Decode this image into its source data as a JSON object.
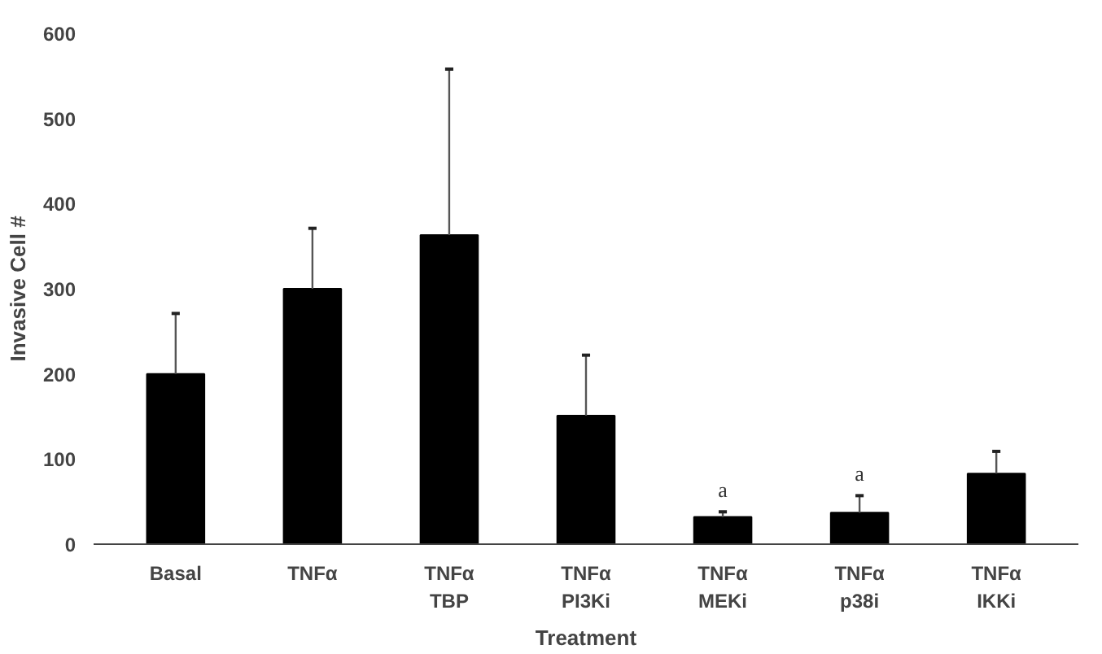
{
  "chart_data": {
    "type": "bar",
    "categories": [
      "Basal",
      "TNFα",
      "TNFα\nTBP",
      "TNFα\nPI3Ki",
      "TNFα\nMEKi",
      "TNFα\np38i",
      "TNFα\nIKKi"
    ],
    "values": [
      200,
      300,
      363,
      151,
      32,
      37,
      83
    ],
    "errors": [
      [
        200,
        271
      ],
      [
        300,
        371
      ],
      [
        363,
        558
      ],
      [
        151,
        222
      ],
      [
        32,
        38
      ],
      [
        37,
        57
      ],
      [
        83,
        109
      ]
    ],
    "color": "#000000",
    "xlabel": "Treatment",
    "ylabel": "Invasive Cell #",
    "ylim": [
      0,
      600
    ],
    "yticks": [
      0,
      100,
      200,
      300,
      400,
      500,
      600
    ],
    "annotations": [
      {
        "text": "a",
        "x": "TNFα\nMEKi",
        "y": 38
      },
      {
        "text": "a",
        "x": "TNFα\np38i",
        "y": 57
      }
    ]
  }
}
